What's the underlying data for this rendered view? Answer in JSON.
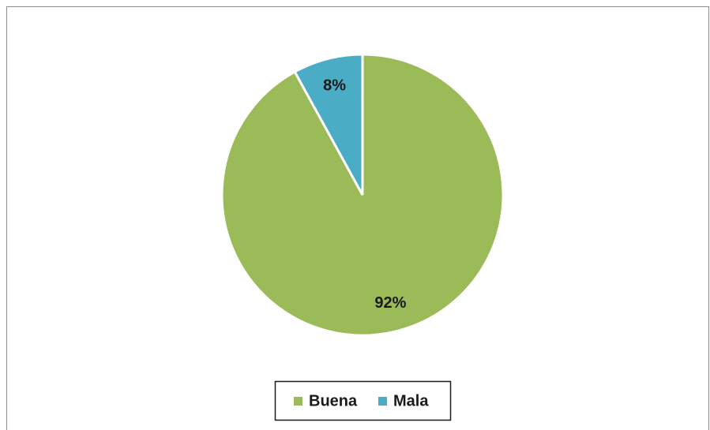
{
  "chart_data": {
    "type": "pie",
    "categories": [
      "Buena",
      "Mala"
    ],
    "values": [
      92,
      8
    ],
    "value_labels": [
      "92%",
      "8%"
    ],
    "colors": [
      "#9bbb59",
      "#4bacc6"
    ],
    "legend": "bottom"
  }
}
